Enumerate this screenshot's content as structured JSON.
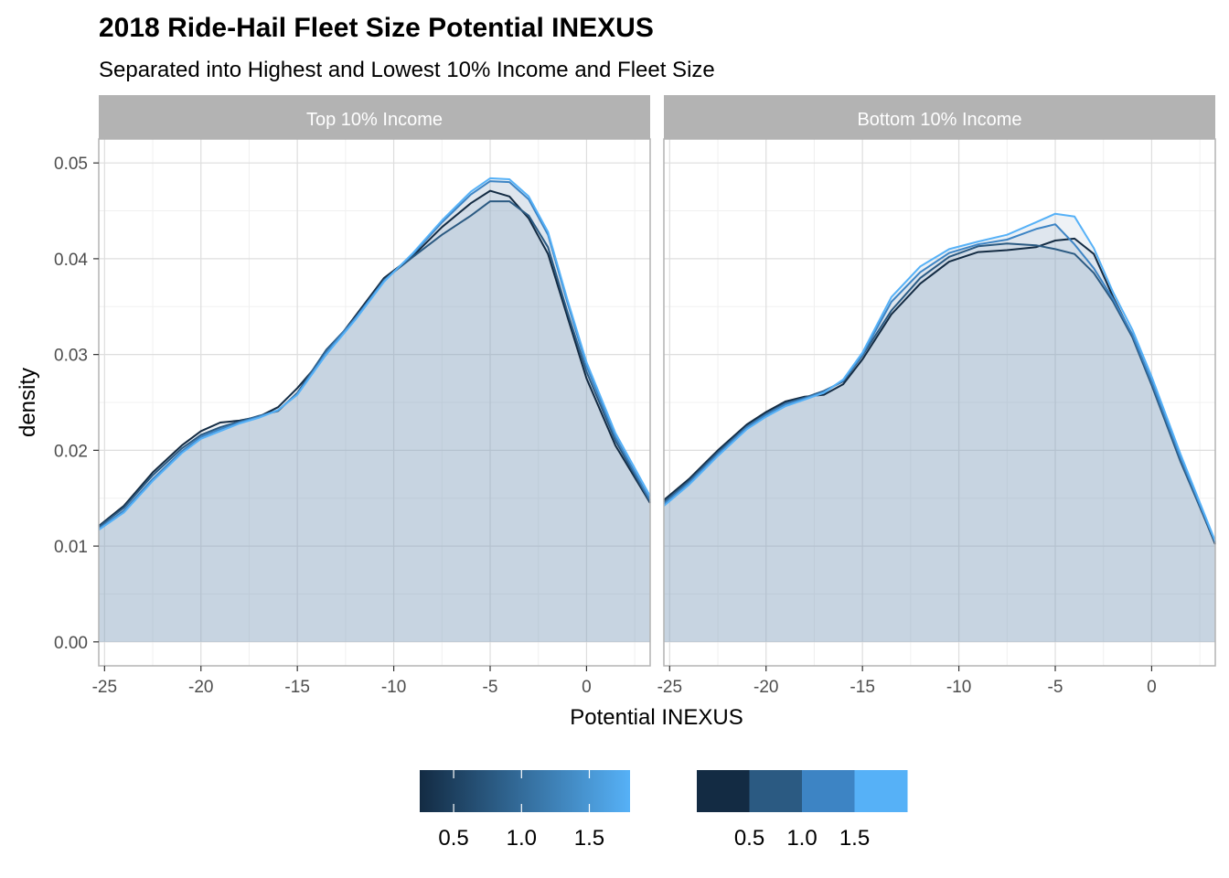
{
  "chart_data": {
    "type": "area",
    "title": "2018 Ride-Hail Fleet Size Potential INEXUS",
    "subtitle": "Separated into Highest and Lowest 10% Income and Fleet Size",
    "xlabel": "Potential INEXUS",
    "ylabel": "density",
    "xlim": [
      -25.3,
      3.3
    ],
    "ylim": [
      -0.0025,
      0.0525
    ],
    "x_ticks": [
      -25,
      -20,
      -15,
      -10,
      -5,
      0
    ],
    "x_tick_labels": [
      "-25",
      "-20",
      "-15",
      "-10",
      "-5",
      "0"
    ],
    "y_ticks": [
      0,
      0.01,
      0.02,
      0.03,
      0.04,
      0.05
    ],
    "y_tick_labels": [
      "0.00",
      "0.01",
      "0.02",
      "0.03",
      "0.04",
      "0.05"
    ],
    "grid": true,
    "legend_position": "bottom",
    "x": [
      -25.3,
      -24,
      -22.5,
      -21,
      -20,
      -19,
      -18,
      -17,
      -16,
      -15,
      -13.5,
      -12,
      -10.5,
      -9,
      -7.5,
      -6,
      -5,
      -4,
      -3,
      -2,
      -1,
      0,
      1.5,
      3.3
    ],
    "panels": [
      {
        "label": "Top 10% Income",
        "series": [
          {
            "level": 0.3,
            "color": "#132b43",
            "values": [
              0.0121,
              0.0142,
              0.0177,
              0.0205,
              0.022,
              0.0229,
              0.0231,
              0.0235,
              0.0245,
              0.0265,
              0.03,
              0.034,
              0.038,
              0.0403,
              0.0433,
              0.0458,
              0.0471,
              0.0465,
              0.0442,
              0.0405,
              0.034,
              0.0275,
              0.0205,
              0.0145
            ]
          },
          {
            "level": 0.8,
            "color": "#2b5a82",
            "values": [
              0.012,
              0.014,
              0.0174,
              0.0202,
              0.0216,
              0.0224,
              0.023,
              0.0236,
              0.0241,
              0.026,
              0.0305,
              0.0337,
              0.0378,
              0.0402,
              0.0425,
              0.0445,
              0.046,
              0.046,
              0.0445,
              0.0412,
              0.0345,
              0.0282,
              0.021,
              0.0146
            ]
          },
          {
            "level": 1.3,
            "color": "#3d84c4",
            "values": [
              0.0118,
              0.0137,
              0.017,
              0.0199,
              0.0214,
              0.0222,
              0.0229,
              0.0235,
              0.0242,
              0.0259,
              0.0302,
              0.0338,
              0.0377,
              0.0405,
              0.0438,
              0.0467,
              0.0481,
              0.048,
              0.0462,
              0.0425,
              0.0355,
              0.0288,
              0.0214,
              0.0148
            ]
          },
          {
            "level": 1.75,
            "color": "#56b1f7",
            "values": [
              0.0117,
              0.0135,
              0.0168,
              0.0197,
              0.0212,
              0.022,
              0.0228,
              0.0234,
              0.0242,
              0.0258,
              0.03,
              0.0336,
              0.0376,
              0.0406,
              0.044,
              0.047,
              0.0484,
              0.0483,
              0.0465,
              0.0428,
              0.0358,
              0.0292,
              0.0218,
              0.0152
            ]
          }
        ]
      },
      {
        "label": "Bottom 10% Income",
        "series": [
          {
            "level": 0.3,
            "color": "#132b43",
            "values": [
              0.0148,
              0.017,
              0.02,
              0.0227,
              0.024,
              0.0251,
              0.0256,
              0.0258,
              0.0269,
              0.0295,
              0.0342,
              0.0374,
              0.0397,
              0.0407,
              0.0409,
              0.0412,
              0.0419,
              0.0421,
              0.0405,
              0.036,
              0.032,
              0.027,
              0.019,
              0.0102
            ]
          },
          {
            "level": 0.8,
            "color": "#2b5a82",
            "values": [
              0.0146,
              0.0168,
              0.0198,
              0.0225,
              0.0238,
              0.0249,
              0.0255,
              0.0262,
              0.0272,
              0.0299,
              0.0346,
              0.038,
              0.0402,
              0.0413,
              0.0416,
              0.0414,
              0.041,
              0.0405,
              0.0385,
              0.0355,
              0.0318,
              0.0268,
              0.0188,
              0.0103
            ]
          },
          {
            "level": 1.3,
            "color": "#3d84c4",
            "values": [
              0.0144,
              0.0166,
              0.0196,
              0.0224,
              0.0237,
              0.0248,
              0.0254,
              0.0261,
              0.0273,
              0.03,
              0.0355,
              0.0386,
              0.0406,
              0.0415,
              0.042,
              0.0431,
              0.0436,
              0.0415,
              0.039,
              0.0358,
              0.0321,
              0.0272,
              0.0192,
              0.0104
            ]
          },
          {
            "level": 1.75,
            "color": "#56b1f7",
            "values": [
              0.0142,
              0.0164,
              0.0194,
              0.0222,
              0.0235,
              0.0246,
              0.0253,
              0.026,
              0.0274,
              0.0302,
              0.036,
              0.0392,
              0.041,
              0.0418,
              0.0425,
              0.0438,
              0.0447,
              0.0444,
              0.0411,
              0.0365,
              0.0326,
              0.0277,
              0.0196,
              0.0105
            ]
          }
        ]
      }
    ],
    "fill_color": "#8aa5c2",
    "legends": [
      {
        "type": "colorbar",
        "colors": [
          "#132b43",
          "#56b1f7"
        ],
        "range": [
          0.25,
          1.8
        ],
        "tick_values": [
          0.5,
          1.0,
          1.5
        ],
        "tick_labels": [
          "0.5",
          "1.0",
          "1.5"
        ]
      },
      {
        "type": "discrete",
        "colors": [
          "#132b43",
          "#2b5a82",
          "#3d84c4",
          "#56b1f7"
        ],
        "tick_labels": [
          "0.5",
          "1.0",
          "1.5"
        ]
      }
    ]
  }
}
